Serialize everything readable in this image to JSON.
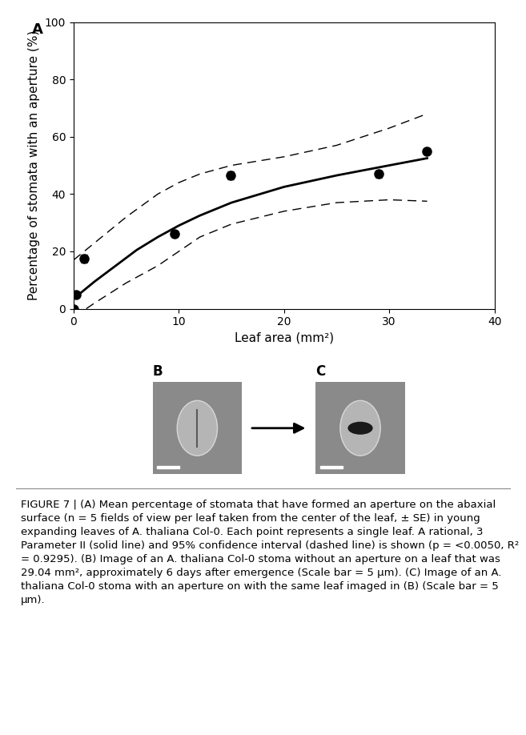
{
  "chart_data": {
    "type": "scatter",
    "panel_label": "A",
    "x_label": "Leaf area (mm²)",
    "y_label": "Percentage of stomata with an aperture (%)",
    "x": [
      0,
      0.2,
      1.0,
      9.6,
      14.9,
      29.0,
      33.6
    ],
    "values": [
      0,
      5,
      17.5,
      26,
      46.5,
      47,
      55
    ],
    "errors": [
      0.5,
      1.0,
      1.5,
      1.0,
      1.5,
      1.2,
      1.0
    ],
    "color": "#000000",
    "marker": "circle",
    "fit": {
      "line_style": "solid",
      "x": [
        0,
        1,
        2,
        4,
        6,
        8,
        10,
        12,
        15,
        20,
        25,
        30,
        33.6
      ],
      "values": [
        3.5,
        6.5,
        9.5,
        15,
        20.5,
        25,
        29,
        32.5,
        37,
        42.5,
        46.5,
        50,
        52.5
      ]
    },
    "ci_upper": {
      "line_style": "dashed",
      "x": [
        0,
        2,
        5,
        8,
        10,
        12,
        15,
        20,
        25,
        30,
        33.6
      ],
      "values": [
        17,
        23,
        32,
        40,
        44,
        47,
        50,
        53,
        57,
        63,
        68
      ]
    },
    "ci_lower": {
      "line_style": "dashed",
      "x": [
        1.2,
        2,
        5,
        8,
        10,
        12,
        15,
        20,
        25,
        30,
        33.6
      ],
      "values": [
        0,
        2,
        9,
        15,
        20,
        25,
        29.5,
        34,
        37,
        38,
        37.5
      ]
    },
    "xlim": [
      0,
      40
    ],
    "xticks": [
      0,
      10,
      20,
      30,
      40
    ],
    "ylim": [
      0,
      100
    ],
    "yticks": [
      0,
      20,
      40,
      60,
      80,
      100
    ],
    "grid": false
  },
  "panels": [
    {
      "label": "B"
    },
    {
      "label": "C"
    }
  ],
  "caption": "FIGURE 7 | (A) Mean percentage of stomata that have formed an aperture on the abaxial surface (n = 5 fields of view per leaf taken from the center of the leaf, ± SE) in young expanding leaves of A. thaliana Col-0. Each point represents a single leaf. A rational, 3 Parameter II (solid line) and 95% confidence interval (dashed line) is shown (p = <0.0050, R² = 0.9295). (B) Image of an A. thaliana Col-0 stoma without an aperture on a leaf that was 29.04 mm², approximately 6 days after emergence (Scale bar = 5 μm). (C) Image of an A. thaliana Col-0 stoma with an aperture on with the same leaf imaged in (B) (Scale bar = 5 μm)."
}
